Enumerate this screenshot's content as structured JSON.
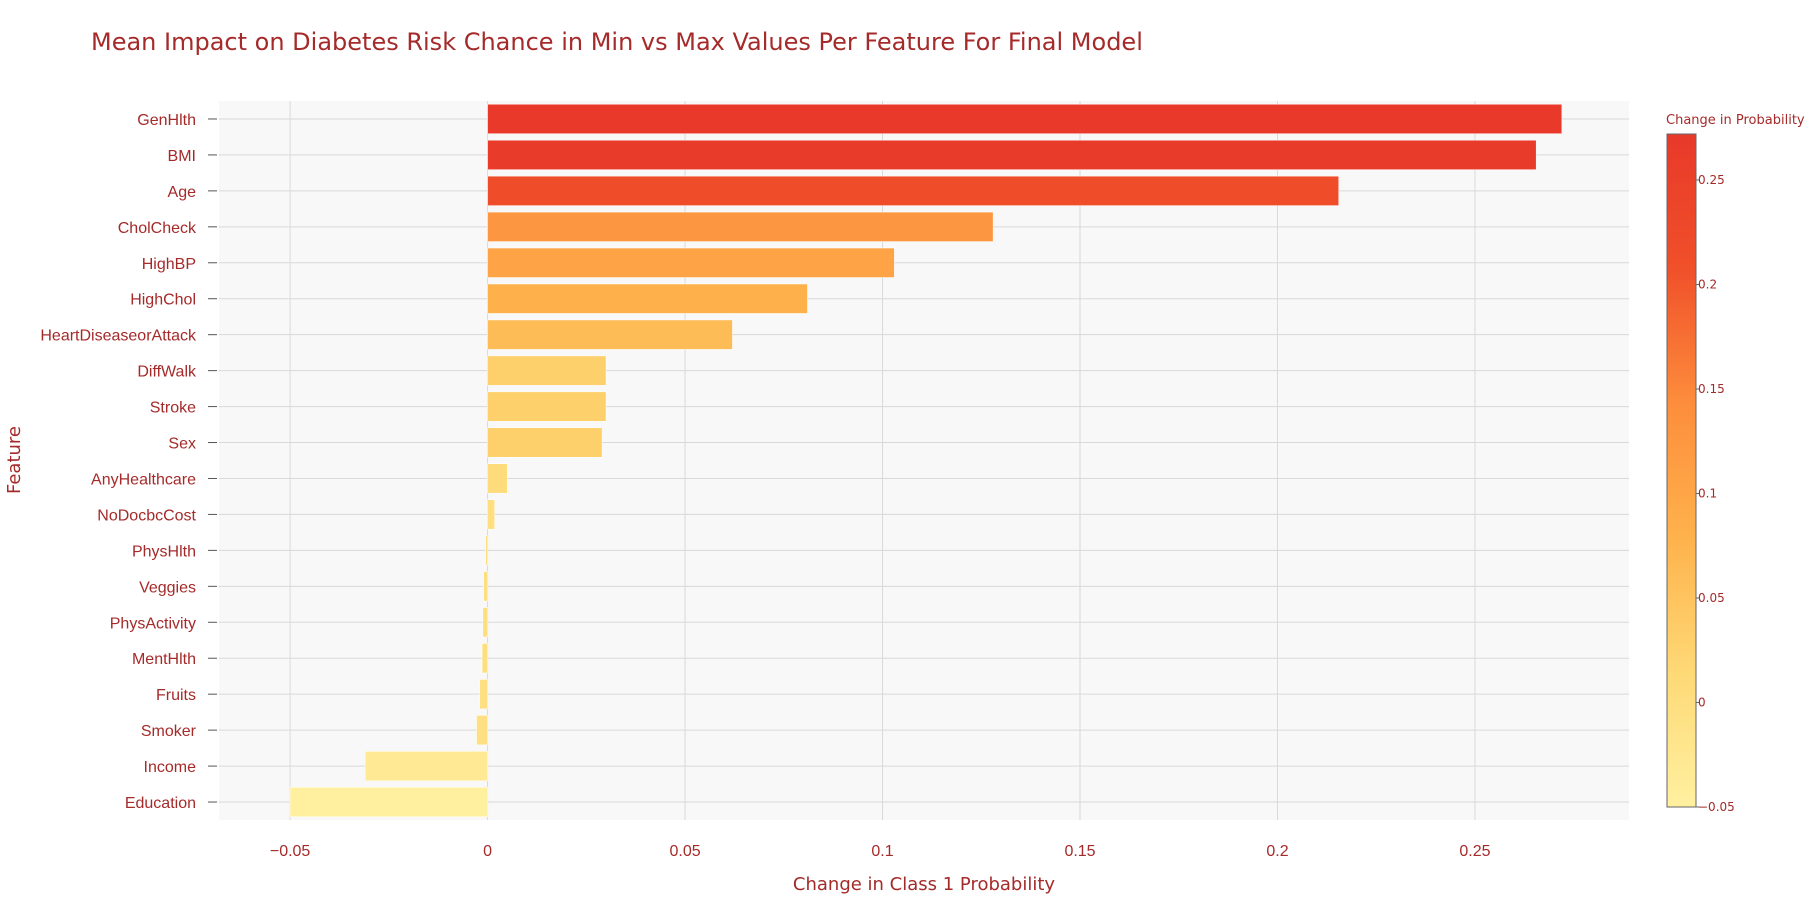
{
  "chart_data": {
    "type": "bar",
    "orientation": "horizontal",
    "title": "Mean Impact on Diabetes Risk Chance in Min vs Max Values Per Feature For Final Model",
    "xlabel": "Change in Class 1 Probability",
    "ylabel": "Feature",
    "xlim": [
      -0.068,
      0.289
    ],
    "x_ticks": [
      -0.05,
      0,
      0.05,
      0.1,
      0.15,
      0.2,
      0.25
    ],
    "x_tick_labels": [
      "−0.05",
      "0",
      "0.05",
      "0.1",
      "0.15",
      "0.2",
      "0.25"
    ],
    "grid": true,
    "categories": [
      "GenHlth",
      "BMI",
      "Age",
      "CholCheck",
      "HighBP",
      "HighChol",
      "HeartDiseaseorAttack",
      "DiffWalk",
      "Stroke",
      "Sex",
      "AnyHealthcare",
      "NoDocbcCost",
      "PhysHlth",
      "Veggies",
      "PhysActivity",
      "MentHlth",
      "Fruits",
      "Smoker",
      "Income",
      "Education"
    ],
    "values": [
      0.272,
      0.2655,
      0.2155,
      0.128,
      0.103,
      0.081,
      0.062,
      0.03,
      0.03,
      0.029,
      0.005,
      0.0018,
      -0.0005,
      -0.001,
      -0.0012,
      -0.0014,
      -0.002,
      -0.0028,
      -0.031,
      -0.05
    ],
    "colorbar": {
      "title": "Change in Probability",
      "range": [
        -0.05,
        0.272
      ],
      "ticks": [
        -0.05,
        0,
        0.05,
        0.1,
        0.15,
        0.2,
        0.25
      ],
      "tick_labels": [
        "−0.05",
        "0",
        "0.05",
        "0.1",
        "0.15",
        "0.2",
        "0.25"
      ],
      "colorscale": [
        "#fff0a0",
        "#fed976",
        "#feb24c",
        "#fd8d3c",
        "#f0502a",
        "#e8392a"
      ]
    }
  }
}
